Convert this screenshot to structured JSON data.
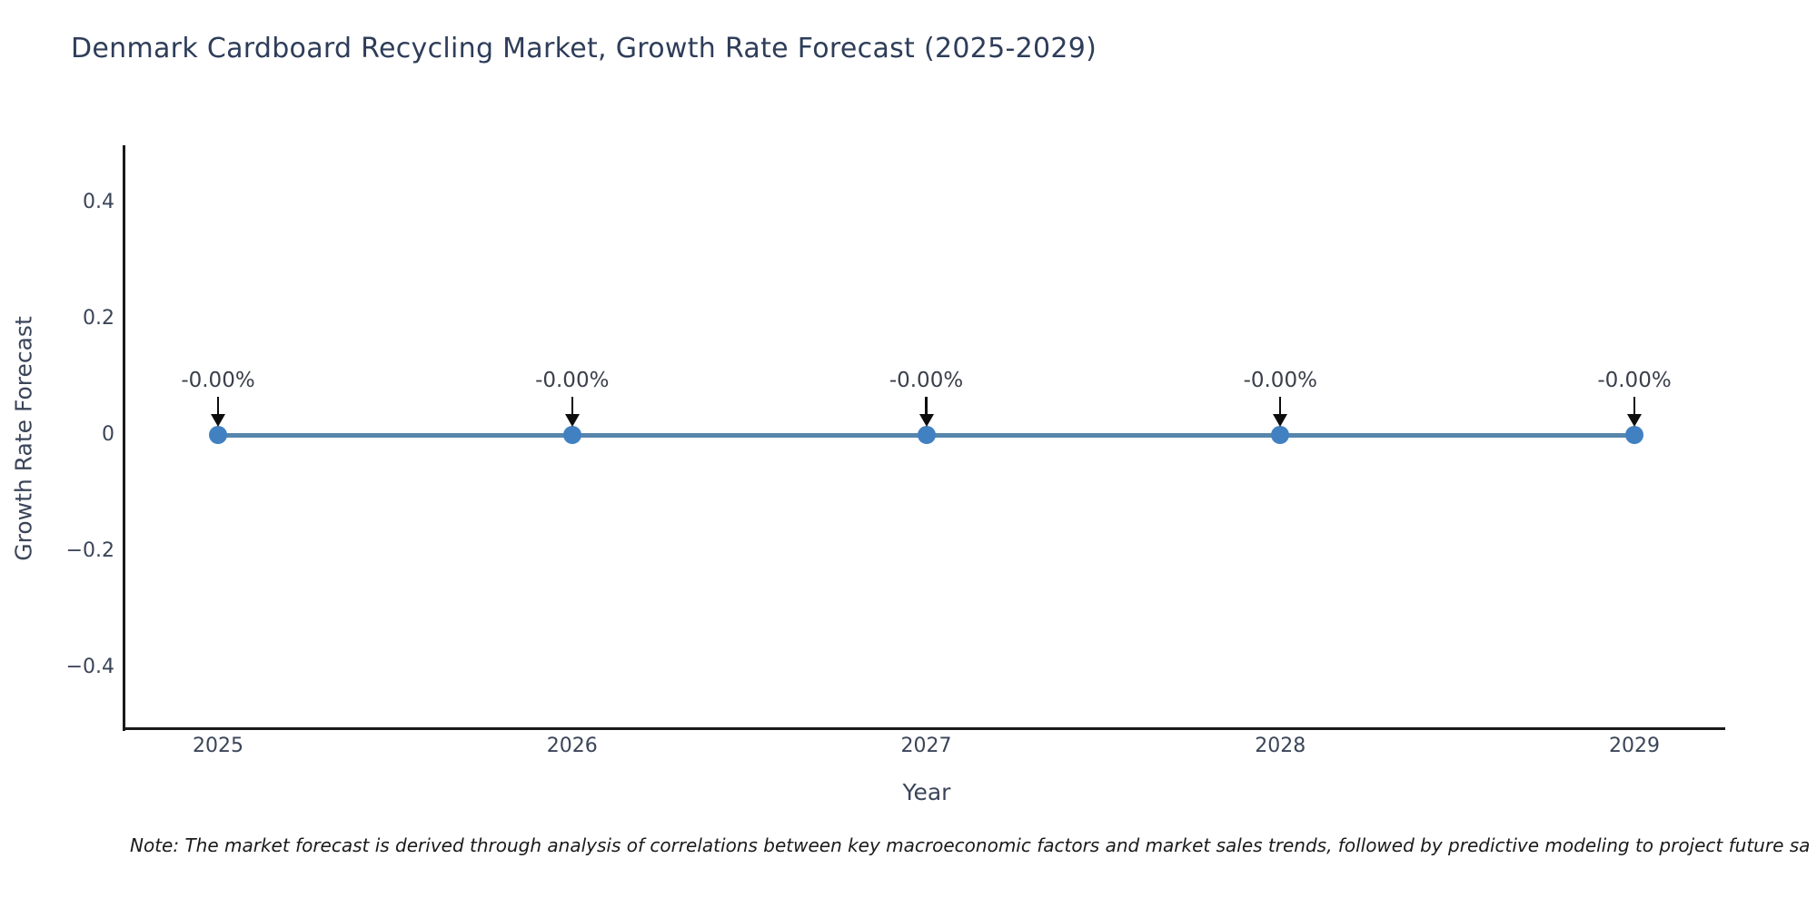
{
  "chart_data": {
    "type": "line",
    "title": "Denmark Cardboard Recycling Market, Growth Rate Forecast (2025-2029)",
    "xlabel": "Year",
    "ylabel": "Growth Rate Forecast",
    "x": [
      2025,
      2026,
      2027,
      2028,
      2029
    ],
    "series": [
      {
        "name": "Growth Rate Forecast",
        "values": [
          0,
          0,
          0,
          0,
          0
        ]
      }
    ],
    "point_labels": [
      "-0.00%",
      "-0.00%",
      "-0.00%",
      "-0.00%",
      "-0.00%"
    ],
    "xticks": [
      "2025",
      "2026",
      "2027",
      "2028",
      "2029"
    ],
    "yticks": [
      "0.4",
      "0.2",
      "0",
      "−0.2",
      "−0.4"
    ],
    "ytick_values": [
      0.4,
      0.2,
      0,
      -0.2,
      -0.4
    ],
    "ylim": [
      -0.5,
      0.5
    ],
    "grid": false,
    "legend_position": "none",
    "line_color": "#5786ad",
    "marker_color": "#4181c2",
    "annotation_arrow_color": "#0d0d0d",
    "axis_color": "#1a1a1a"
  },
  "note": "Note: The market forecast is derived through analysis of correlations between key macroeconomic factors and market sales trends, followed by predictive modeling to project future sa"
}
